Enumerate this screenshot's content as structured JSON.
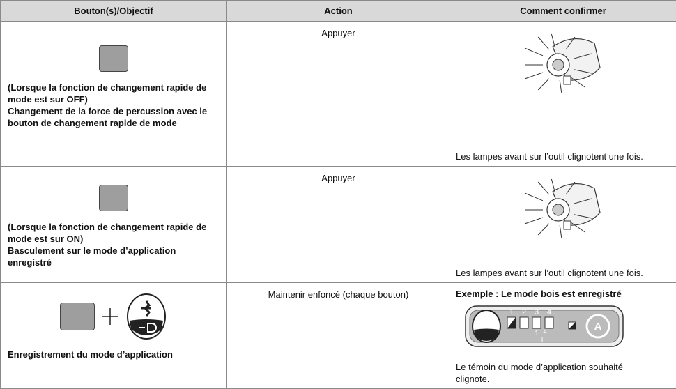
{
  "table": {
    "header": [
      "Bouton(s)/Objectif",
      "Action",
      "Comment confirmer"
    ],
    "rows": [
      {
        "condition": "(Lorsque la fonction de changement rapide de mode est sur OFF)",
        "description": "Changement de la force de percussion avec le bouton de changement rapide de mode",
        "action": "Appuyer",
        "confirm": "Les lampes avant sur l’outil clignotent une fois."
      },
      {
        "condition": "(Lorsque la fonction de changement rapide de mode est sur ON)",
        "description": "Basculement sur le mode d’application enregistré",
        "action": "Appuyer",
        "confirm": "Les lampes avant sur l’outil clignotent une fois."
      },
      {
        "description": "Enregistrement du mode d’application",
        "action": "Maintenir enfoncé (chaque bouton)",
        "example": "Exemple : Le mode bois est enregistré",
        "panel_labels": [
          "1",
          "2",
          "3",
          "4",
          "1",
          "2",
          "T"
        ],
        "confirm": "Le témoin du mode d’application souhaité clignote."
      }
    ]
  }
}
